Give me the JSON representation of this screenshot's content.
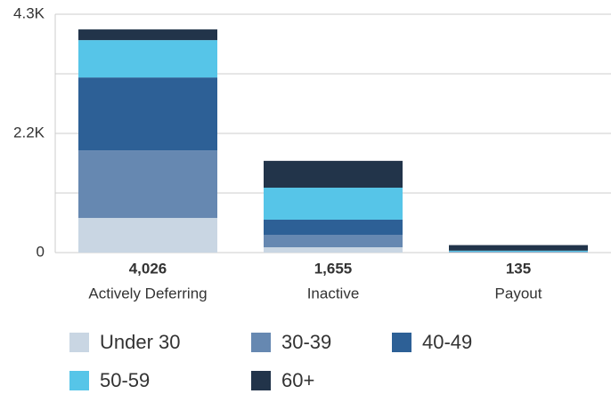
{
  "chart_data": {
    "type": "stacked_bar",
    "categories": [
      "Actively Deferring",
      "Inactive",
      "Payout"
    ],
    "totals": [
      4026,
      1655,
      135
    ],
    "totals_labels": [
      "4,026",
      "1,655",
      "135"
    ],
    "series": [
      {
        "name": "Under 30",
        "color": "#c9d6e3",
        "values": [
          625,
          96,
          5
        ]
      },
      {
        "name": "30-39",
        "color": "#6688b1",
        "values": [
          1219,
          225,
          5
        ]
      },
      {
        "name": "40-49",
        "color": "#2d6096",
        "values": [
          1315,
          273,
          5
        ]
      },
      {
        "name": "50-59",
        "color": "#56c5e8",
        "values": [
          674,
          577,
          20
        ]
      },
      {
        "name": "60+",
        "color": "#22344a",
        "values": [
          193,
          484,
          100
        ]
      }
    ],
    "ylim": [
      0,
      4300
    ],
    "yticks": [
      0,
      {
        "value": 2150,
        "label": "2.2K"
      },
      {
        "value": 4300,
        "label": "4.3K"
      }
    ],
    "minor_gridlines": [
      1075,
      3225
    ],
    "grid": true
  }
}
